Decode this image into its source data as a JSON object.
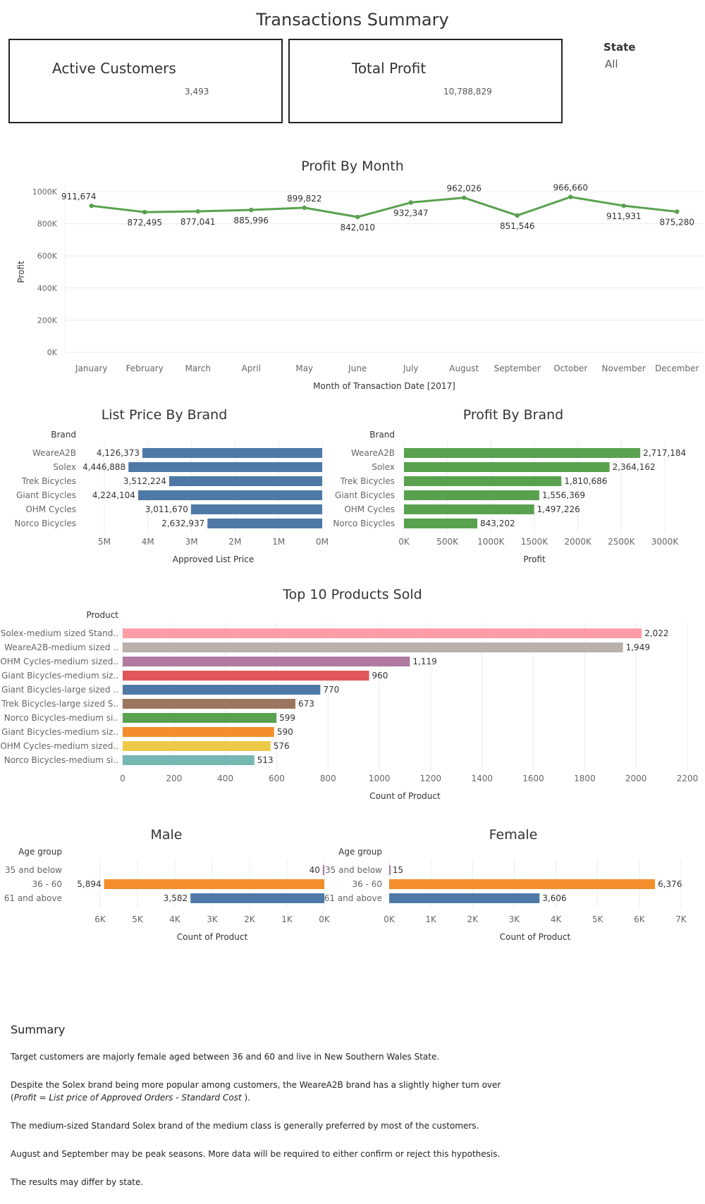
{
  "header": {
    "title": "Transactions Summary"
  },
  "kpis": [
    {
      "label": "Active Customers",
      "value": "3,493"
    },
    {
      "label": "Total Profit",
      "value": "10,788,829"
    }
  ],
  "filter": {
    "label": "State",
    "value": "All"
  },
  "colors": {
    "line": "#59a14f",
    "list_price_bar": "#4e79a7",
    "profit_bar": "#59a14f",
    "grid": "#ececec",
    "axis_text": "#666666",
    "orange": "#f28e2b",
    "blue": "#4e79a7",
    "purple": "#b07aa1"
  },
  "chart_data": [
    {
      "id": "profit_by_month",
      "type": "line",
      "title": "Profit By Month",
      "xlabel": "Month of Transaction Date [2017]",
      "ylabel": "Profit",
      "ylim": [
        0,
        1000000
      ],
      "y_ticks": [
        0,
        200000,
        400000,
        600000,
        800000,
        1000000
      ],
      "y_tick_labels": [
        "0K",
        "200K",
        "400K",
        "600K",
        "800K",
        "1000K"
      ],
      "categories": [
        "January",
        "February",
        "March",
        "April",
        "May",
        "June",
        "July",
        "August",
        "September",
        "October",
        "November",
        "December"
      ],
      "values": [
        911674,
        872495,
        877041,
        885996,
        899822,
        842010,
        932347,
        962026,
        851546,
        966660,
        911931,
        875280
      ],
      "data_labels": [
        "911,674",
        "872,495",
        "877,041",
        "885,996",
        "899,822",
        "842,010",
        "932,347",
        "962,026",
        "851,546",
        "966,660",
        "911,931",
        "875,280"
      ],
      "grid": true
    },
    {
      "id": "list_price_by_brand",
      "type": "bar",
      "orientation": "horizontal-reversed",
      "title": "List Price By Brand",
      "category_header": "Brand",
      "xlabel": "Approved List Price",
      "xlim": [
        0,
        5000000
      ],
      "x_ticks": [
        5000000,
        4000000,
        3000000,
        2000000,
        1000000,
        0
      ],
      "x_tick_labels": [
        "5M",
        "4M",
        "3M",
        "2M",
        "1M",
        "0M"
      ],
      "categories": [
        "WeareA2B",
        "Solex",
        "Trek Bicycles",
        "Giant Bicycles",
        "OHM Cycles",
        "Norco Bicycles"
      ],
      "values": [
        4126373,
        4446888,
        3512224,
        4224104,
        3011670,
        2632937
      ],
      "data_labels": [
        "4,126,373",
        "4,446,888",
        "3,512,224",
        "4,224,104",
        "3,011,670",
        "2,632,937"
      ],
      "grid": true
    },
    {
      "id": "profit_by_brand",
      "type": "bar",
      "orientation": "horizontal",
      "title": "Profit By Brand",
      "category_header": "Brand",
      "xlabel": "Profit",
      "xlim": [
        0,
        3000000
      ],
      "x_ticks": [
        0,
        500000,
        1000000,
        1500000,
        2000000,
        2500000,
        3000000
      ],
      "x_tick_labels": [
        "0K",
        "500K",
        "1000K",
        "1500K",
        "2000K",
        "2500K",
        "3000K"
      ],
      "categories": [
        "WeareA2B",
        "Solex",
        "Trek Bicycles",
        "Giant Bicycles",
        "OHM Cycles",
        "Norco Bicycles"
      ],
      "values": [
        2717184,
        2364162,
        1810686,
        1556369,
        1497226,
        843202
      ],
      "data_labels": [
        "2,717,184",
        "2,364,162",
        "1,810,686",
        "1,556,369",
        "1,497,226",
        "843,202"
      ],
      "grid": true
    },
    {
      "id": "top_10_products",
      "type": "bar",
      "orientation": "horizontal",
      "title": "Top 10 Products Sold",
      "category_header": "Product",
      "xlabel": "Count of Product",
      "xlim": [
        0,
        2200
      ],
      "x_ticks": [
        0,
        200,
        400,
        600,
        800,
        1000,
        1200,
        1400,
        1600,
        1800,
        2000,
        2200
      ],
      "x_tick_labels": [
        "0",
        "200",
        "400",
        "600",
        "800",
        "1000",
        "1200",
        "1400",
        "1600",
        "1800",
        "2000",
        "2200"
      ],
      "categories": [
        "Solex-medium sized Stand..",
        "WeareA2B-medium sized ..",
        "OHM Cycles-medium sized..",
        "Giant Bicycles-medium siz..",
        "Giant Bicycles-large sized ..",
        "Trek Bicycles-large sized S..",
        "Norco Bicycles-medium si..",
        "Giant Bicycles-medium siz..",
        "OHM Cycles-medium sized..",
        "Norco Bicycles-medium si.."
      ],
      "values": [
        2022,
        1949,
        1119,
        960,
        770,
        673,
        599,
        590,
        576,
        513
      ],
      "data_labels": [
        "2,022",
        "1,949",
        "1,119",
        "960",
        "770",
        "673",
        "599",
        "590",
        "576",
        "513"
      ],
      "colors": [
        "#ff9da7",
        "#bab0ac",
        "#b07aa1",
        "#e15759",
        "#4e79a7",
        "#9c755f",
        "#59a14f",
        "#f28e2b",
        "#edc948",
        "#76b7b2"
      ],
      "grid": true
    },
    {
      "id": "male_age_group",
      "type": "bar",
      "orientation": "horizontal-reversed",
      "title": "Male",
      "category_header": "Age group",
      "xlabel": "Count of Product",
      "xlim": [
        0,
        6000
      ],
      "x_ticks": [
        6000,
        5000,
        4000,
        3000,
        2000,
        1000,
        0
      ],
      "x_tick_labels": [
        "6K",
        "5K",
        "4K",
        "3K",
        "2K",
        "1K",
        "0K"
      ],
      "categories": [
        "35 and below",
        "36 - 60",
        "61 and above"
      ],
      "values": [
        40,
        5894,
        3582
      ],
      "data_labels": [
        "40",
        "5,894",
        "3,582"
      ],
      "colors": [
        "#b07aa1",
        "#f28e2b",
        "#4e79a7"
      ],
      "grid": true
    },
    {
      "id": "female_age_group",
      "type": "bar",
      "orientation": "horizontal",
      "title": "Female",
      "category_header": "Age group",
      "xlabel": "Count of Product",
      "xlim": [
        0,
        7000
      ],
      "x_ticks": [
        0,
        1000,
        2000,
        3000,
        4000,
        5000,
        6000,
        7000
      ],
      "x_tick_labels": [
        "0K",
        "1K",
        "2K",
        "3K",
        "4K",
        "5K",
        "6K",
        "7K"
      ],
      "categories": [
        "35 and below",
        "36 - 60",
        "61 and above"
      ],
      "values": [
        15,
        6376,
        3606
      ],
      "data_labels": [
        "15",
        "6,376",
        "3,606"
      ],
      "colors": [
        "#b07aa1",
        "#f28e2b",
        "#4e79a7"
      ],
      "grid": true
    }
  ],
  "summary": {
    "heading": "Summary",
    "p1": "Target customers are majorly female aged between 36 and 60 and  live in New Southern Wales State.",
    "p2_text": "Despite the Solex brand being more popular among customers, the WeareA2B brand has a slightly higher turn over",
    "p2_open": "(",
    "p2_italic": "Profit = List price of Approved Orders - Standard Cost",
    "p2_close": " ).",
    "p3": " The medium-sized Standard Solex brand of the medium class is generally preferred by most of the customers.",
    "p4": "August and September may be peak seasons. More data will be required to either confirm or reject this hypothesis.",
    "p5": "The results may differ by state."
  }
}
